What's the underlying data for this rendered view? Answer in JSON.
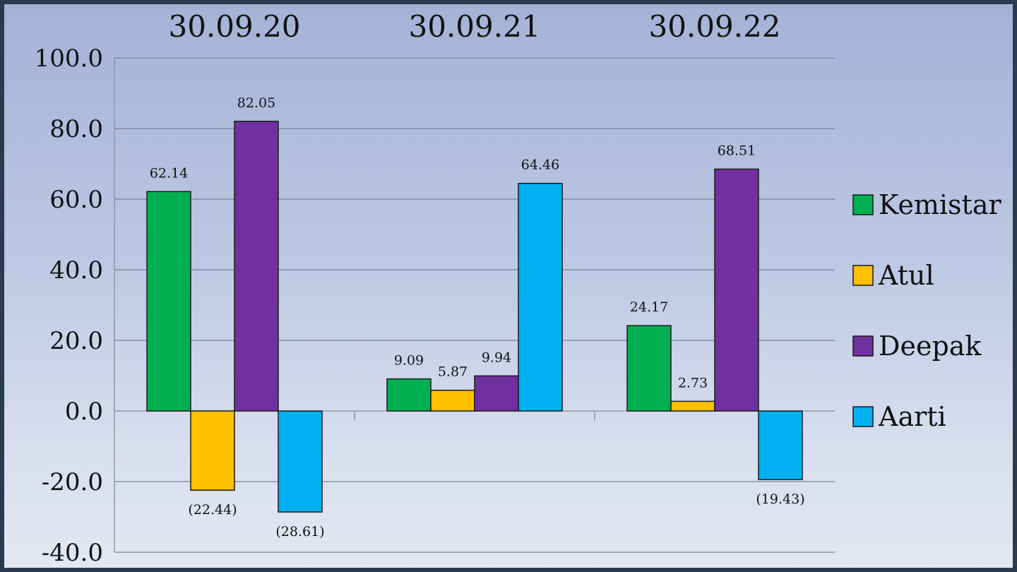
{
  "chart_data": {
    "type": "bar",
    "categories": [
      "30.09.20",
      "30.09.21",
      "30.09.22"
    ],
    "series": [
      {
        "name": "Kemistar",
        "color": "#00b050",
        "values": [
          62.14,
          9.09,
          24.17
        ],
        "labels": [
          "62.14",
          "9.09",
          "24.17"
        ]
      },
      {
        "name": "Atul",
        "color": "#ffc000",
        "values": [
          -22.44,
          5.87,
          2.73
        ],
        "labels": [
          "(22.44)",
          "5.87",
          "2.73"
        ]
      },
      {
        "name": "Deepak",
        "color": "#7030a0",
        "values": [
          82.05,
          9.94,
          68.51
        ],
        "labels": [
          "82.05",
          "9.94",
          "68.51"
        ]
      },
      {
        "name": "Aarti",
        "color": "#00b0f0",
        "values": [
          -28.61,
          64.46,
          -19.43
        ],
        "labels": [
          "(28.61)",
          "64.46",
          "(19.43)"
        ]
      }
    ],
    "y_ticks": [
      "100.0",
      "80.0",
      "60.0",
      "40.0",
      "20.0",
      "0.0",
      "-20.0",
      "-40.0"
    ],
    "ylim": [
      -40,
      100
    ],
    "grid": true,
    "legend_position": "right",
    "category_labels_position": "top"
  }
}
